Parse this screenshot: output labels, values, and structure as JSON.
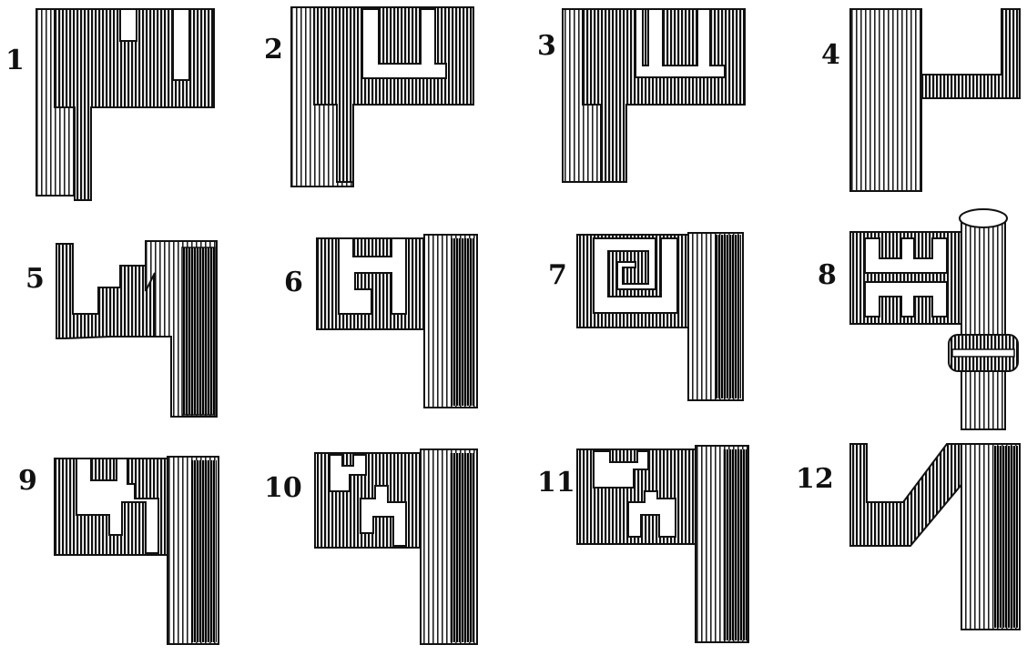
{
  "figures": [
    {
      "number": "1"
    },
    {
      "number": "2"
    },
    {
      "number": "3"
    },
    {
      "number": "4"
    },
    {
      "number": "5"
    },
    {
      "number": "6"
    },
    {
      "number": "7"
    },
    {
      "number": "8"
    },
    {
      "number": "9"
    },
    {
      "number": "10"
    },
    {
      "number": "11"
    },
    {
      "number": "12"
    }
  ]
}
